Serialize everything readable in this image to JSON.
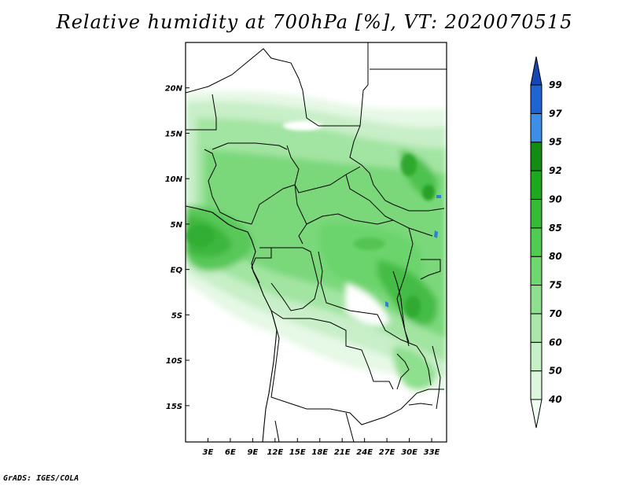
{
  "title": "Relative humidity at 700hPa [%], VT: 2020070515",
  "footer": "GrADS: IGES/COLA",
  "map": {
    "lon_range": [
      0,
      35
    ],
    "lat_range": [
      -19,
      25
    ],
    "lat_ticks": [
      "20N",
      "15N",
      "10N",
      "5N",
      "EQ",
      "5S",
      "10S",
      "15S"
    ],
    "lon_ticks": [
      "3E",
      "6E",
      "9E",
      "12E",
      "15E",
      "18E",
      "21E",
      "24E",
      "27E",
      "30E",
      "33E"
    ]
  },
  "colorbar": {
    "levels": [
      "40",
      "50",
      "60",
      "70",
      "75",
      "80",
      "85",
      "90",
      "92",
      "95",
      "97",
      "99"
    ],
    "colors": [
      "#f0fff0",
      "#dcf7dc",
      "#c6f0c6",
      "#aae8aa",
      "#8ee08e",
      "#6ed86e",
      "#50cc50",
      "#36bb36",
      "#1ea81e",
      "#128c12",
      "#3c8ee6",
      "#1e64d2",
      "#1446b4"
    ]
  }
}
